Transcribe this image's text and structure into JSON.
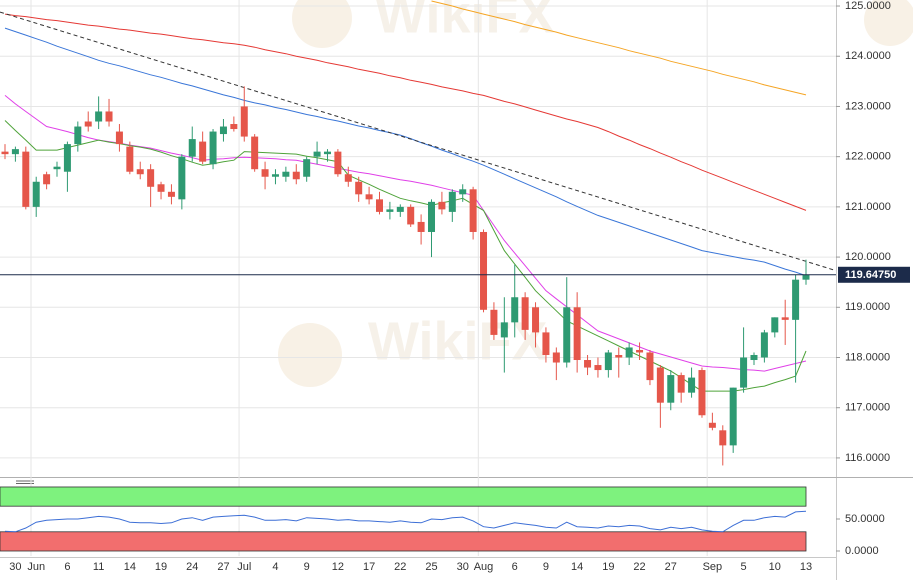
{
  "watermark": "WikiFX",
  "chart_data": [
    {
      "type": "candlestick",
      "categories": [
        null,
        "30",
        null,
        "Jun",
        null,
        null,
        "6",
        null,
        null,
        "11",
        null,
        null,
        "14",
        null,
        null,
        "19",
        null,
        null,
        "24",
        null,
        null,
        "27",
        null,
        "Jul",
        null,
        null,
        "4",
        null,
        null,
        "9",
        null,
        null,
        "12",
        null,
        null,
        "17",
        null,
        null,
        "22",
        null,
        null,
        "25",
        null,
        null,
        "30",
        null,
        "Aug",
        null,
        null,
        "6",
        null,
        null,
        "9",
        null,
        null,
        "14",
        null,
        null,
        "19",
        null,
        null,
        "22",
        null,
        null,
        "27",
        null,
        null,
        null,
        "Sep",
        null,
        null,
        "5",
        null,
        null,
        "10",
        null,
        null,
        "13"
      ],
      "open": [
        122.1,
        122.05,
        122.1,
        121.0,
        121.65,
        121.75,
        121.7,
        122.25,
        122.7,
        122.7,
        122.9,
        122.5,
        122.2,
        121.75,
        121.75,
        121.45,
        121.3,
        121.15,
        122.0,
        122.3,
        121.85,
        122.45,
        122.65,
        123.0,
        122.4,
        121.75,
        121.6,
        121.6,
        121.7,
        121.6,
        122.0,
        122.05,
        122.1,
        121.65,
        121.5,
        121.25,
        121.15,
        120.9,
        120.9,
        121.0,
        120.7,
        120.5,
        121.1,
        120.9,
        121.25,
        121.35,
        120.5,
        118.95,
        118.4,
        118.7,
        119.2,
        119.0,
        118.5,
        118.1,
        117.9,
        119.0,
        117.95,
        117.85,
        117.75,
        118.05,
        118.0,
        118.15,
        118.1,
        117.8,
        117.1,
        117.65,
        117.3,
        117.75,
        116.7,
        116.55,
        116.25,
        117.4,
        117.95,
        118.0,
        118.5,
        118.8,
        118.75,
        119.55
      ],
      "high": [
        122.25,
        122.2,
        122.2,
        121.6,
        121.7,
        121.9,
        122.3,
        122.7,
        122.9,
        123.2,
        123.15,
        122.65,
        122.3,
        121.9,
        121.85,
        121.5,
        121.45,
        122.05,
        122.6,
        122.5,
        122.55,
        122.75,
        122.8,
        123.4,
        122.45,
        121.9,
        121.75,
        121.8,
        121.85,
        122.0,
        122.3,
        122.15,
        122.15,
        121.8,
        121.6,
        121.4,
        121.3,
        121.1,
        121.05,
        121.05,
        120.85,
        121.15,
        121.3,
        121.35,
        121.45,
        121.4,
        120.55,
        119.1,
        119.2,
        119.85,
        119.3,
        119.1,
        118.6,
        118.2,
        119.6,
        119.3,
        118.05,
        118.0,
        118.15,
        118.2,
        118.3,
        118.3,
        118.15,
        117.85,
        117.75,
        117.7,
        117.8,
        117.8,
        116.9,
        116.65,
        117.4,
        118.6,
        118.1,
        118.55,
        118.8,
        119.15,
        119.65,
        119.95
      ],
      "low": [
        121.95,
        121.9,
        120.95,
        120.8,
        121.35,
        121.6,
        121.3,
        122.1,
        122.5,
        122.55,
        122.6,
        122.1,
        121.65,
        121.55,
        121.0,
        121.15,
        121.05,
        120.95,
        121.9,
        121.85,
        121.75,
        122.3,
        122.5,
        122.3,
        121.7,
        121.35,
        121.45,
        121.5,
        121.45,
        121.5,
        121.85,
        121.9,
        121.6,
        121.4,
        121.1,
        121.05,
        120.85,
        120.75,
        120.8,
        120.6,
        120.25,
        120.0,
        120.85,
        120.7,
        121.1,
        120.35,
        118.9,
        118.35,
        117.7,
        118.4,
        118.35,
        118.2,
        117.9,
        117.55,
        117.8,
        117.7,
        117.65,
        117.6,
        117.6,
        117.6,
        117.85,
        117.95,
        117.45,
        116.6,
        116.95,
        117.1,
        117.2,
        116.8,
        116.55,
        115.85,
        116.1,
        117.3,
        117.85,
        117.9,
        118.4,
        118.25,
        117.5,
        119.45
      ],
      "close": [
        122.05,
        122.15,
        121.0,
        121.5,
        121.45,
        121.8,
        122.25,
        122.6,
        122.6,
        122.9,
        122.7,
        122.25,
        121.7,
        121.65,
        121.4,
        121.3,
        121.2,
        122.0,
        122.35,
        121.9,
        122.5,
        122.6,
        122.55,
        122.4,
        121.75,
        121.6,
        121.65,
        121.7,
        121.55,
        121.95,
        122.1,
        122.1,
        121.65,
        121.5,
        121.25,
        121.15,
        120.9,
        120.95,
        121.0,
        120.65,
        120.5,
        121.1,
        120.95,
        121.3,
        121.35,
        120.5,
        118.95,
        118.45,
        118.7,
        119.2,
        118.55,
        118.5,
        118.05,
        117.9,
        119.0,
        117.95,
        117.8,
        117.75,
        118.1,
        118.0,
        118.2,
        118.1,
        117.55,
        117.1,
        117.65,
        117.3,
        117.6,
        116.85,
        116.6,
        116.25,
        117.4,
        118.0,
        118.05,
        118.5,
        118.8,
        118.75,
        119.55,
        119.6475
      ],
      "up_color": "#2e9a72",
      "down_color": "#e5564a",
      "series": [
        {
          "color": "#e53935",
          "values": [
            124.84,
            124.81,
            124.79,
            124.76,
            124.73,
            124.71,
            124.68,
            124.65,
            124.62,
            124.6,
            124.57,
            124.54,
            124.52,
            124.49,
            124.46,
            124.44,
            124.41,
            124.38,
            124.35,
            124.33,
            124.3,
            124.27,
            124.25,
            124.22,
            124.18,
            124.13,
            124.09,
            124.05,
            124.0,
            123.96,
            123.92,
            123.87,
            123.83,
            123.79,
            123.74,
            123.7,
            123.66,
            123.61,
            123.57,
            123.52,
            123.48,
            123.44,
            123.39,
            123.35,
            123.31,
            123.26,
            123.22,
            123.16,
            123.1,
            123.05,
            122.99,
            122.93,
            122.87,
            122.81,
            122.75,
            122.7,
            122.64,
            122.58,
            122.5,
            122.41,
            122.33,
            122.24,
            122.16,
            122.07,
            121.99,
            121.9,
            121.82,
            121.73,
            121.65,
            121.57,
            121.49,
            121.41,
            121.33,
            121.25,
            121.17,
            121.09,
            121.01,
            120.93
          ]
        },
        {
          "color": "#f5a524",
          "values": [
            null,
            null,
            null,
            null,
            null,
            null,
            null,
            null,
            null,
            null,
            null,
            null,
            null,
            null,
            null,
            null,
            null,
            null,
            null,
            null,
            null,
            null,
            null,
            null,
            null,
            null,
            null,
            null,
            null,
            null,
            null,
            null,
            null,
            null,
            null,
            null,
            null,
            null,
            null,
            null,
            null,
            125.1,
            125.05,
            125.0,
            124.94,
            124.89,
            124.84,
            124.79,
            124.74,
            124.69,
            124.63,
            124.58,
            124.53,
            124.48,
            124.42,
            124.37,
            124.32,
            124.27,
            124.22,
            124.17,
            124.11,
            124.06,
            124.01,
            123.96,
            123.9,
            123.85,
            123.8,
            123.75,
            123.7,
            123.64,
            123.59,
            123.54,
            123.49,
            123.43,
            123.38,
            123.33,
            123.28,
            123.23
          ]
        },
        {
          "color": "#3a76d8",
          "values": [
            124.56,
            124.49,
            124.42,
            124.35,
            124.28,
            124.2,
            124.13,
            124.06,
            123.99,
            123.92,
            123.86,
            123.81,
            123.75,
            123.69,
            123.63,
            123.58,
            123.52,
            123.46,
            123.41,
            123.35,
            123.29,
            123.23,
            123.18,
            123.12,
            123.07,
            123.03,
            122.98,
            122.94,
            122.89,
            122.84,
            122.8,
            122.75,
            122.71,
            122.66,
            122.61,
            122.57,
            122.52,
            122.48,
            122.43,
            122.36,
            122.28,
            122.21,
            122.13,
            122.06,
            121.98,
            121.91,
            121.83,
            121.74,
            121.65,
            121.56,
            121.47,
            121.38,
            121.29,
            121.2,
            121.1,
            121.01,
            120.92,
            120.83,
            120.76,
            120.69,
            120.62,
            120.55,
            120.48,
            120.41,
            120.34,
            120.27,
            120.2,
            120.13,
            120.09,
            120.05,
            120.01,
            119.97,
            119.94,
            119.9,
            119.83,
            119.76,
            119.7,
            119.63
          ]
        },
        {
          "color": "#e040e8",
          "values": [
            123.22,
            123.05,
            122.9,
            122.75,
            122.6,
            122.55,
            122.5,
            122.44,
            122.38,
            122.33,
            122.3,
            122.27,
            122.23,
            122.2,
            122.17,
            122.12,
            122.07,
            122.03,
            121.98,
            121.93,
            121.95,
            121.96,
            121.98,
            121.99,
            121.98,
            121.97,
            121.96,
            121.94,
            121.93,
            121.89,
            121.85,
            121.81,
            121.77,
            121.73,
            121.69,
            121.66,
            121.62,
            121.58,
            121.54,
            121.51,
            121.47,
            121.43,
            121.38,
            121.33,
            121.28,
            121.23,
            120.93,
            120.63,
            120.33,
            120.08,
            119.83,
            119.58,
            119.33,
            119.17,
            119.01,
            118.85,
            118.69,
            118.53,
            118.45,
            118.37,
            118.29,
            118.21,
            118.13,
            118.07,
            118.01,
            117.95,
            117.89,
            117.83,
            117.81,
            117.8,
            117.78,
            117.76,
            117.75,
            117.73,
            117.78,
            117.83,
            117.88,
            117.93
          ]
        },
        {
          "color": "#4fa33a",
          "values": [
            122.72,
            122.52,
            122.33,
            122.13,
            122.13,
            122.13,
            122.18,
            122.23,
            122.28,
            122.33,
            122.29,
            122.26,
            122.22,
            122.19,
            122.15,
            122.09,
            122.02,
            121.96,
            121.89,
            121.83,
            121.86,
            121.9,
            121.93,
            122.1,
            122.09,
            122.08,
            122.07,
            122.06,
            122.05,
            122.01,
            121.98,
            121.94,
            121.9,
            121.63,
            121.54,
            121.45,
            121.35,
            121.26,
            121.17,
            121.12,
            121.08,
            121.03,
            121.08,
            121.12,
            121.17,
            121.05,
            120.93,
            120.53,
            120.13,
            119.86,
            119.6,
            119.33,
            119.13,
            118.93,
            118.73,
            118.63,
            118.53,
            118.43,
            118.33,
            118.23,
            118.13,
            118.03,
            117.93,
            117.83,
            117.73,
            117.6,
            117.46,
            117.33,
            117.33,
            117.33,
            117.33,
            117.36,
            117.4,
            117.43,
            117.5,
            117.56,
            117.63,
            118.13
          ]
        }
      ],
      "trendline": {
        "start": 124.88,
        "end": 119.73,
        "color": "#333333"
      },
      "last_price": {
        "value": 119.6475,
        "label": "119.64750",
        "color": "#1c2b4a"
      },
      "ylim": [
        115.64,
        125.12
      ],
      "yticks": [
        {
          "value": 116,
          "label": "116.0000"
        },
        {
          "value": 117,
          "label": "117.0000"
        },
        {
          "value": 118,
          "label": "118.0000"
        },
        {
          "value": 119,
          "label": "119.0000"
        },
        {
          "value": 120,
          "label": "120.0000"
        },
        {
          "value": 121,
          "label": "121.0000"
        },
        {
          "value": 122,
          "label": "122.0000"
        },
        {
          "value": 123,
          "label": "123.0000"
        },
        {
          "value": 124,
          "label": "124.0000"
        },
        {
          "value": 125,
          "label": "125.0000"
        }
      ],
      "grid": true
    },
    {
      "type": "line",
      "values": [
        31,
        30,
        36,
        45,
        48,
        49,
        50,
        50,
        52,
        54,
        53,
        50,
        45,
        44,
        44,
        43,
        44,
        50,
        52,
        48,
        53,
        54,
        55,
        56,
        53,
        48,
        48,
        49,
        47,
        52,
        51,
        50,
        48,
        49,
        47,
        47,
        46,
        45,
        47,
        45,
        44,
        50,
        49,
        52,
        53,
        47,
        38,
        36,
        40,
        44,
        42,
        40,
        37,
        36,
        45,
        38,
        37,
        36,
        39,
        38,
        40,
        39,
        35,
        33,
        37,
        35,
        37,
        33,
        31,
        30,
        40,
        48,
        48,
        52,
        54,
        53,
        61,
        62
      ],
      "color": "#3d6fd6",
      "bands": [
        {
          "from": 70,
          "to": 100,
          "color": "#7ef27e"
        },
        {
          "from": 0,
          "to": 30,
          "color": "#f26e6e"
        }
      ],
      "ylim": [
        -7.8,
        110.9
      ],
      "yticks": [
        {
          "value": 50,
          "label": "50.0000"
        },
        {
          "value": 0,
          "label": "0.0000"
        }
      ]
    }
  ]
}
